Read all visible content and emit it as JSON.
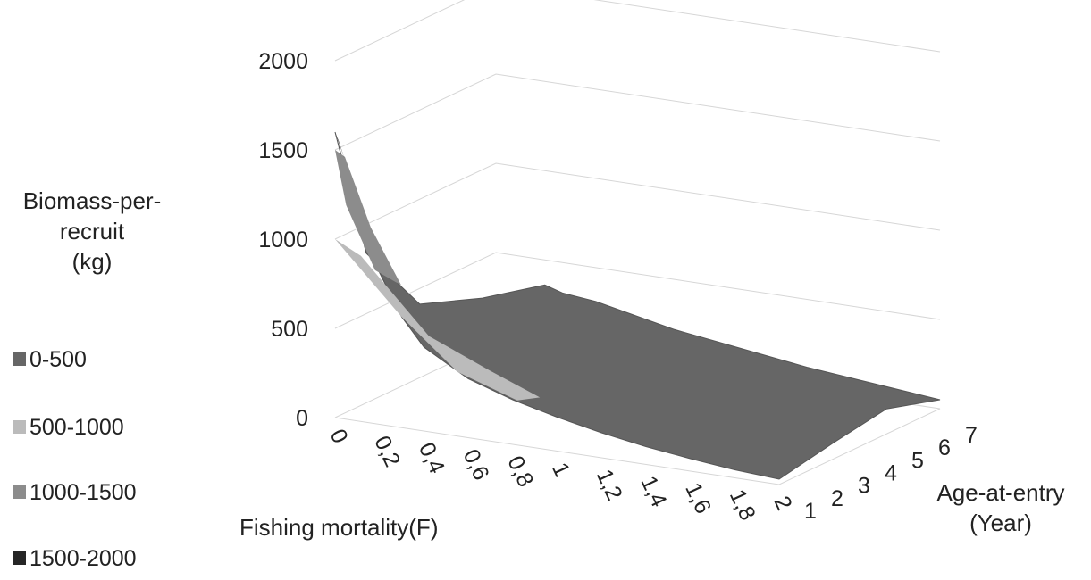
{
  "chart_data": {
    "type": "surface",
    "zlabel": [
      "Biomass-per-",
      "recruit",
      "(kg)"
    ],
    "xlabel": "Fishing mortality(F)",
    "ylabel": [
      "Age-at-entry",
      "(Year)"
    ],
    "z_ticks": [
      "0",
      "500",
      "1000",
      "1500",
      "2000"
    ],
    "zlim": [
      0,
      2000
    ],
    "x_ticks": [
      "0",
      "0,2",
      "0,4",
      "0,6",
      "0,8",
      "1",
      "1,2",
      "1,4",
      "1,6",
      "1,8",
      "2"
    ],
    "xlim": [
      0,
      2
    ],
    "y_ticks": [
      "1",
      "2",
      "3",
      "4",
      "5",
      "6",
      "7"
    ],
    "ylim": [
      1,
      7
    ],
    "legend": [
      {
        "label": "0-500",
        "color": "#666666"
      },
      {
        "label": "500-1000",
        "color": "#bbbbbb"
      },
      {
        "label": "1000-1500",
        "color": "#8c8c8c"
      },
      {
        "label": "1500-2000",
        "color": "#262626"
      }
    ],
    "grid": true,
    "legend_position": "left",
    "surface_profile_at_age_1": [
      {
        "F": 0,
        "biomass": 1600
      },
      {
        "F": 0.1,
        "biomass": 1150
      },
      {
        "F": 0.2,
        "biomass": 850
      },
      {
        "F": 0.3,
        "biomass": 620
      },
      {
        "F": 0.4,
        "biomass": 470
      },
      {
        "F": 0.6,
        "biomass": 330
      },
      {
        "F": 0.8,
        "biomass": 250
      },
      {
        "F": 1.0,
        "biomass": 190
      },
      {
        "F": 1.2,
        "biomass": 140
      },
      {
        "F": 1.4,
        "biomass": 100
      },
      {
        "F": 1.6,
        "biomass": 70
      },
      {
        "F": 1.8,
        "biomass": 45
      },
      {
        "F": 2.0,
        "biomass": 30
      }
    ],
    "surface_profile_at_F2": [
      {
        "age": 1,
        "biomass": 30
      },
      {
        "age": 3,
        "biomass": 90
      },
      {
        "age": 5,
        "biomass": 140
      },
      {
        "age": 7,
        "biomass": 50
      }
    ]
  }
}
